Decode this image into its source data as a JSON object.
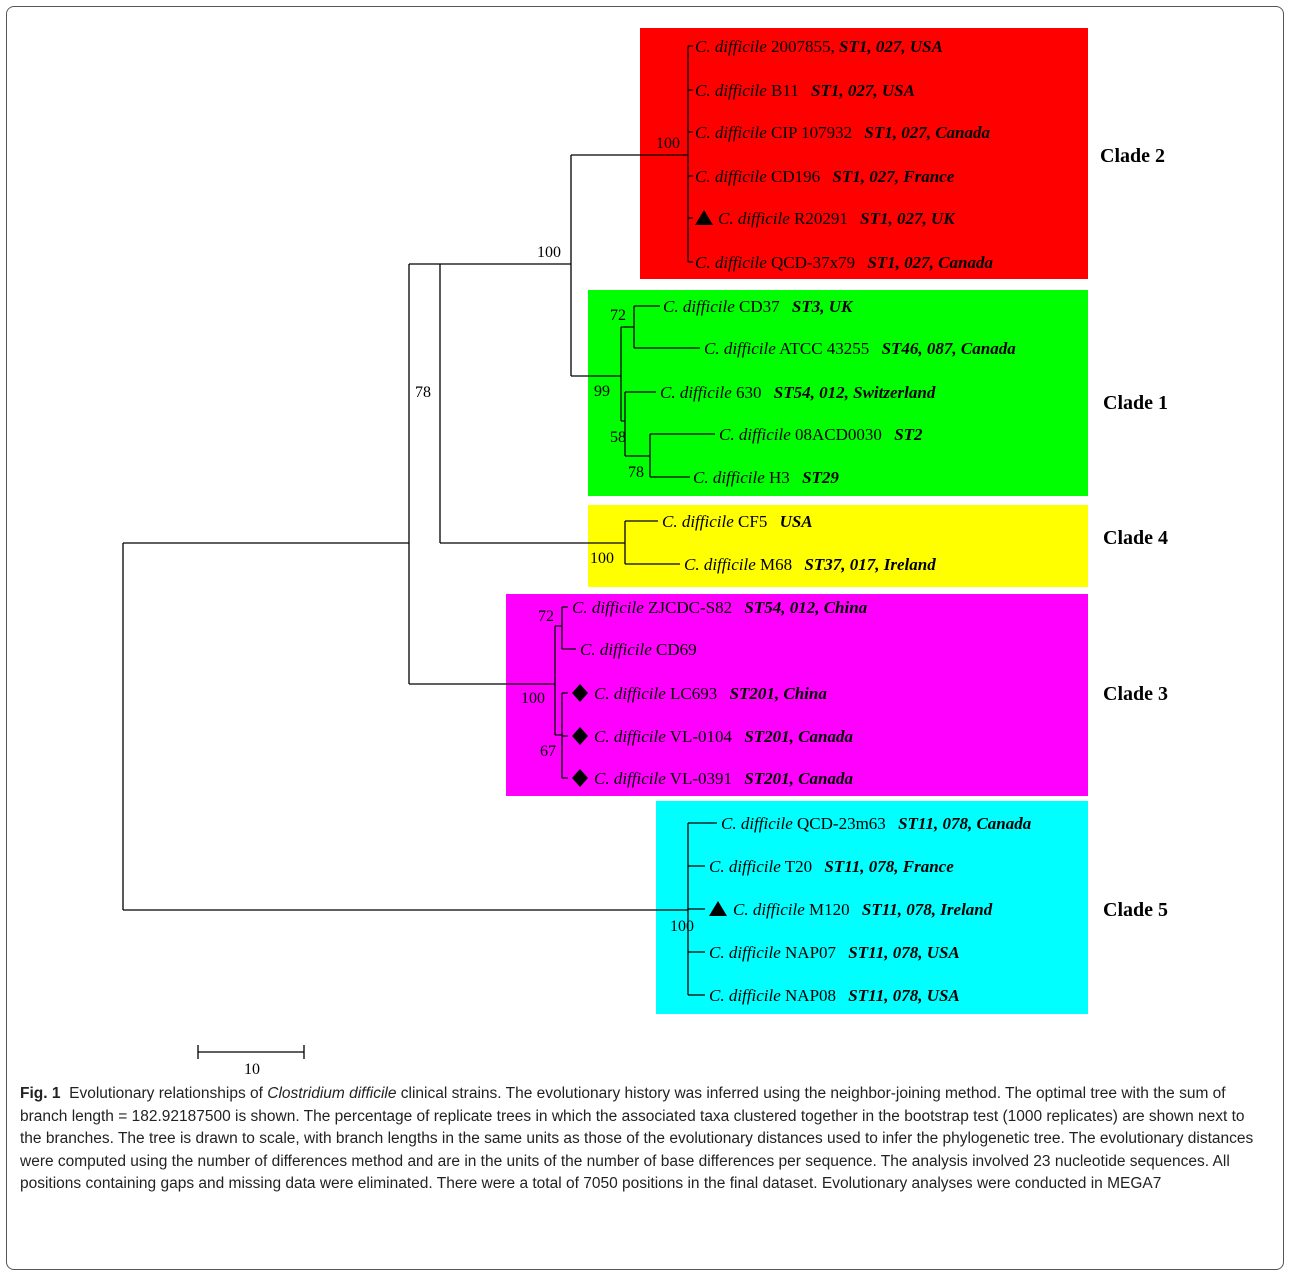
{
  "figure": {
    "species_prefix": "C. difficile",
    "tips": [
      {
        "id": "t1",
        "strain": "2007855,",
        "info": "ST1, 027, USA",
        "marker": ""
      },
      {
        "id": "t2",
        "strain": "B11",
        "info": "ST1, 027, USA",
        "marker": ""
      },
      {
        "id": "t3",
        "strain": "CIP 107932",
        "info": "ST1, 027, Canada",
        "marker": ""
      },
      {
        "id": "t4",
        "strain": "CD196",
        "info": "ST1, 027, France",
        "marker": ""
      },
      {
        "id": "t5",
        "strain": "R20291",
        "info": "ST1, 027, UK",
        "marker": "triangle"
      },
      {
        "id": "t6",
        "strain": "QCD-37x79",
        "info": "ST1, 027, Canada",
        "marker": ""
      },
      {
        "id": "t7",
        "strain": "CD37",
        "info": "ST3, UK",
        "marker": ""
      },
      {
        "id": "t8",
        "strain": "ATCC 43255",
        "info": "ST46, 087, Canada",
        "marker": ""
      },
      {
        "id": "t9",
        "strain": "630",
        "info": "ST54, 012, Switzerland",
        "marker": ""
      },
      {
        "id": "t10",
        "strain": "08ACD0030",
        "info": "ST2",
        "marker": ""
      },
      {
        "id": "t11",
        "strain": "H3",
        "info": "ST29",
        "marker": ""
      },
      {
        "id": "t12",
        "strain": "CF5",
        "info": "USA",
        "marker": ""
      },
      {
        "id": "t13",
        "strain": "M68",
        "info": "ST37, 017, Ireland",
        "marker": ""
      },
      {
        "id": "t14",
        "strain": "ZJCDC-S82",
        "info": "ST54, 012, China",
        "marker": ""
      },
      {
        "id": "t15",
        "strain": "CD69",
        "info": "",
        "marker": ""
      },
      {
        "id": "t16",
        "strain": "LC693",
        "info": "ST201, China",
        "marker": "diamond"
      },
      {
        "id": "t17",
        "strain": "VL-0104",
        "info": "ST201, Canada",
        "marker": "diamond"
      },
      {
        "id": "t18",
        "strain": "VL-0391",
        "info": "ST201, Canada",
        "marker": "diamond"
      },
      {
        "id": "t19",
        "strain": "QCD-23m63",
        "info": "ST11, 078, Canada",
        "marker": ""
      },
      {
        "id": "t20",
        "strain": "T20",
        "info": "ST11, 078, France",
        "marker": ""
      },
      {
        "id": "t21",
        "strain": "M120",
        "info": "ST11, 078, Ireland",
        "marker": "triangle"
      },
      {
        "id": "t22",
        "strain": "NAP07",
        "info": "ST11, 078, USA",
        "marker": ""
      },
      {
        "id": "t23",
        "strain": "NAP08",
        "info": "ST11, 078, USA",
        "marker": ""
      }
    ],
    "clades": [
      {
        "id": "clade2",
        "label": "Clade 2",
        "color": "#ff0000"
      },
      {
        "id": "clade1",
        "label": "Clade 1",
        "color": "#00ff00"
      },
      {
        "id": "clade4",
        "label": "Clade 4",
        "color": "#ffff00"
      },
      {
        "id": "clade3",
        "label": "Clade 3",
        "color": "#ff00ff"
      },
      {
        "id": "clade5",
        "label": "Clade 5",
        "color": "#00ffff"
      }
    ],
    "bootstrap_values": [
      "100",
      "100",
      "78",
      "72",
      "99",
      "58",
      "78",
      "100",
      "72",
      "100",
      "67",
      "100"
    ],
    "scale_bar_label": "10"
  },
  "caption": {
    "fig_label": "Fig. 1",
    "text_before_species": "Evolutionary relationships of",
    "species": "Clostridium difficile",
    "text_after_species": "clinical strains. The evolutionary history was inferred using the neighbor-joining method. The optimal tree with the sum of branch length = 182.92187500 is shown. The percentage of replicate trees in which the associated taxa clustered together in the bootstrap test (1000 replicates) are shown next to the branches. The tree is drawn to scale, with branch lengths in the same units as those of the evolutionary distances used to infer the phylogenetic tree. The evolutionary distances were computed using the number of differences method and are in the units of the number of base differences per sequence. The analysis involved 23 nucleotide sequences. All positions containing gaps and missing data were eliminated. There were a total of 7050 positions in the final dataset. Evolutionary analyses were conducted in MEGA7"
  }
}
